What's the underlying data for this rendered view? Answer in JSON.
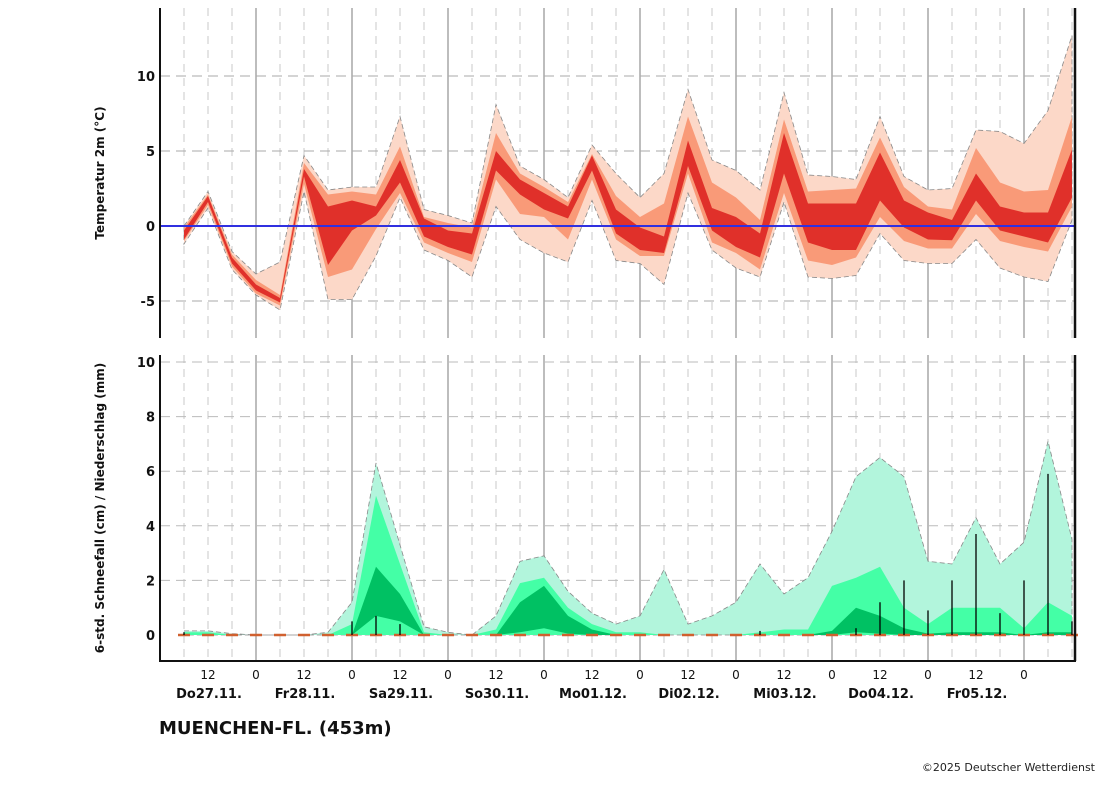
{
  "station_title": "MUENCHEN-FL. (453m)",
  "copyright": "©2025 Deutscher Wetterdienst",
  "colors": {
    "temp_outer": "#fcd8c8",
    "temp_mid": "#f99a78",
    "temp_inner": "#e0302a",
    "zero_line": "#3030e0",
    "precip_outer": "#b2f5dc",
    "precip_mid": "#44ffa6",
    "precip_inner": "#00c163",
    "precip_bar": "#000000",
    "precip_marker": "#d0602f"
  },
  "chart_data": [
    {
      "type": "area",
      "ylabel": "Temperatur 2m (°C)",
      "ylim": [
        -7.5,
        14.5
      ],
      "yticks": [
        -5,
        0,
        5,
        10
      ],
      "grid": true,
      "reference_line": 0,
      "x": [
        "27.11. 06",
        "27.11. 12",
        "27.11. 18",
        "28.11. 00",
        "28.11. 06",
        "28.11. 12",
        "28.11. 18",
        "29.11. 00",
        "29.11. 06",
        "29.11. 12",
        "29.11. 18",
        "30.11. 00",
        "30.11. 06",
        "30.11. 12",
        "30.11. 18",
        "01.12. 00",
        "01.12. 06",
        "01.12. 12",
        "01.12. 18",
        "02.12. 00",
        "02.12. 06",
        "02.12. 12",
        "02.12. 18",
        "03.12. 00",
        "03.12. 06",
        "03.12. 12",
        "03.12. 18",
        "04.12. 00",
        "04.12. 06",
        "04.12. 12",
        "04.12. 18",
        "05.12. 00",
        "05.12. 06",
        "05.12. 12",
        "05.12. 18",
        "06.12. 00",
        "06.12. 06",
        "06.12. 12"
      ],
      "bands": {
        "min": [
          -1.2,
          1.2,
          -2.9,
          -4.6,
          -5.6,
          2.3,
          -4.9,
          -4.9,
          -2.0,
          1.9,
          -1.6,
          -2.3,
          -3.4,
          1.3,
          -0.9,
          -1.8,
          -2.4,
          1.7,
          -2.3,
          -2.5,
          -3.9,
          2.2,
          -1.6,
          -2.8,
          -3.4,
          1.6,
          -3.4,
          -3.5,
          -3.3,
          -0.5,
          -2.3,
          -2.5,
          -2.5,
          -0.9,
          -2.8,
          -3.4,
          -3.7,
          0.4
        ],
        "p10": [
          -1.0,
          1.4,
          -2.7,
          -4.5,
          -5.3,
          2.8,
          -3.4,
          -2.9,
          -0.2,
          2.2,
          -1.1,
          -1.8,
          -2.4,
          3.1,
          0.8,
          0.6,
          -0.9,
          3.1,
          -0.9,
          -2.0,
          -2.0,
          3.5,
          -1.1,
          -1.8,
          -2.9,
          2.2,
          -2.3,
          -2.6,
          -2.1,
          0.6,
          -1.0,
          -1.5,
          -1.5,
          0.8,
          -1.0,
          -1.4,
          -1.7,
          1.3
        ],
        "p25": [
          -0.9,
          1.6,
          -2.5,
          -4.3,
          -5.1,
          3.3,
          -2.6,
          -0.3,
          0.7,
          2.9,
          -0.7,
          -1.4,
          -1.9,
          3.7,
          2.1,
          1.1,
          0.5,
          3.7,
          -0.5,
          -1.6,
          -1.8,
          4.0,
          -0.3,
          -1.4,
          -2.1,
          3.5,
          -1.1,
          -1.6,
          -1.6,
          1.7,
          -0.1,
          -0.9,
          -0.95,
          1.7,
          -0.3,
          -0.7,
          -1.1,
          1.9
        ],
        "p75": [
          -0.3,
          2.0,
          -2.1,
          -3.9,
          -4.8,
          3.8,
          1.3,
          1.7,
          1.3,
          4.4,
          0.5,
          -0.3,
          -0.5,
          5.0,
          3.1,
          2.2,
          1.3,
          4.7,
          1.1,
          -0.1,
          -0.7,
          5.7,
          1.2,
          0.6,
          -0.5,
          6.2,
          1.5,
          1.5,
          1.5,
          4.9,
          1.7,
          0.9,
          0.4,
          3.5,
          1.3,
          0.9,
          0.9,
          5.1
        ],
        "p90": [
          -0.1,
          2.1,
          -1.9,
          -3.6,
          -4.6,
          4.2,
          2.1,
          2.3,
          2.1,
          5.3,
          0.6,
          0.2,
          -0.1,
          6.2,
          3.5,
          2.6,
          1.6,
          4.8,
          2.0,
          0.6,
          1.5,
          7.3,
          2.9,
          1.9,
          0.4,
          7.1,
          2.3,
          2.4,
          2.5,
          5.9,
          2.6,
          1.3,
          1.1,
          5.2,
          2.9,
          2.3,
          2.4,
          7.3
        ],
        "max": [
          0.0,
          2.3,
          -1.7,
          -3.2,
          -2.4,
          4.7,
          2.4,
          2.6,
          2.6,
          7.3,
          1.1,
          0.7,
          0.2,
          8.1,
          4.0,
          3.1,
          1.9,
          5.4,
          3.5,
          1.9,
          3.5,
          9.1,
          4.4,
          3.7,
          2.4,
          8.9,
          3.4,
          3.3,
          3.1,
          7.3,
          3.3,
          2.4,
          2.5,
          6.4,
          6.3,
          5.5,
          7.7,
          12.7
        ]
      }
    },
    {
      "type": "area",
      "ylabel": "6-std. Schneefall (cm) / Niederschlag (mm)",
      "ylim": [
        -0.95,
        10.25
      ],
      "yticks": [
        0,
        2,
        4,
        6,
        8,
        10
      ],
      "grid": true,
      "bands": {
        "max": [
          0.15,
          0.15,
          0.05,
          0,
          0,
          0,
          0.1,
          1.2,
          6.3,
          3.3,
          0.3,
          0.1,
          0,
          0.7,
          2.7,
          2.9,
          1.6,
          0.8,
          0.4,
          0.7,
          2.4,
          0.4,
          0.7,
          1.2,
          2.6,
          1.5,
          2.1,
          3.8,
          5.8,
          6.5,
          5.8,
          2.7,
          2.6,
          4.3,
          2.6,
          3.4,
          7.1,
          3.5
        ],
        "p90": [
          0.1,
          0.1,
          0,
          0,
          0,
          0,
          0,
          0.4,
          5.1,
          2.6,
          0.1,
          0,
          0,
          0.2,
          1.9,
          2.1,
          1.0,
          0.4,
          0.1,
          0.1,
          0,
          0,
          0,
          0,
          0.1,
          0.2,
          0.2,
          1.8,
          2.1,
          2.5,
          1.0,
          0.4,
          1.0,
          1.0,
          1.0,
          0.25,
          1.2,
          0.7
        ],
        "p75": [
          0,
          0,
          0,
          0,
          0,
          0,
          0,
          0,
          2.5,
          1.5,
          0,
          0,
          0,
          0,
          1.2,
          1.8,
          0.7,
          0.2,
          0,
          0,
          0,
          0,
          0,
          0,
          0,
          0,
          0,
          0.15,
          1.0,
          0.7,
          0.25,
          0.05,
          0.1,
          0.1,
          0.1,
          0,
          0.1,
          0.1
        ],
        "p50": [
          0,
          0,
          0,
          0,
          0,
          0,
          0,
          0,
          0.7,
          0.5,
          0,
          0,
          0,
          0,
          0.1,
          0.25,
          0.05,
          0,
          0,
          0,
          0,
          0,
          0,
          0,
          0,
          0,
          0,
          0,
          0.1,
          0.05,
          0,
          0,
          0,
          0,
          0,
          0,
          0,
          0
        ]
      },
      "bars": [
        0.1,
        0,
        0,
        0,
        0,
        0,
        0,
        0.5,
        0.7,
        0.4,
        0,
        0,
        0,
        0,
        0,
        0,
        0,
        0,
        0,
        0,
        0,
        0,
        0,
        0,
        0.15,
        0,
        0,
        0,
        0.25,
        1.2,
        2.0,
        0.9,
        2.0,
        3.7,
        0.8,
        2.0,
        5.9,
        0.5
      ]
    }
  ],
  "x_axis": {
    "hour_labels": [
      "12",
      "0",
      "12",
      "0",
      "12",
      "0",
      "12",
      "0",
      "12",
      "0",
      "12",
      "0",
      "12",
      "0",
      "12",
      "0",
      "12",
      "0"
    ],
    "day_labels": [
      "Do27.11.",
      "Fr28.11.",
      "Sa29.11.",
      "So30.11.",
      "Mo01.12.",
      "Di02.12.",
      "Mi03.12.",
      "Do04.12.",
      "Fr05.12."
    ]
  }
}
